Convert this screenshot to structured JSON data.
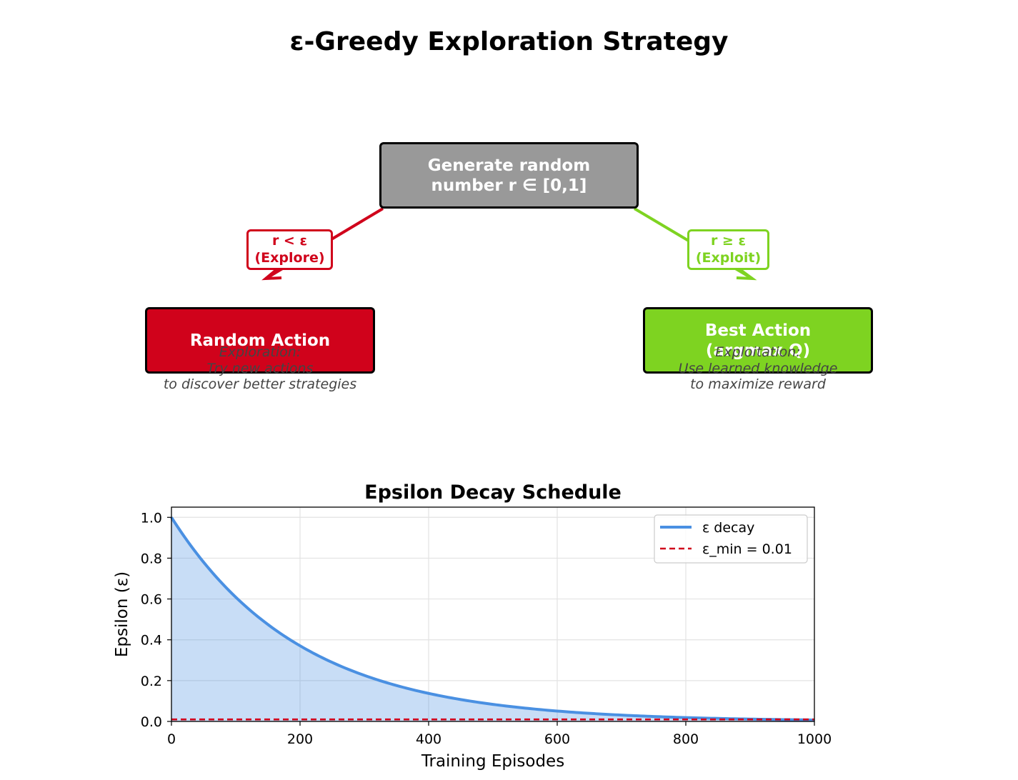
{
  "title": "ε-Greedy Exploration Strategy",
  "diagram": {
    "start_box": {
      "line1": "Generate random",
      "line2": "number r ∈ [0,1]",
      "color": "#999999"
    },
    "explore_condition": {
      "line1": "r < ε",
      "line2": "(Explore)",
      "color": "#D0021B"
    },
    "exploit_condition": {
      "line1": "r ≥ ε",
      "line2": "(Exploit)",
      "color": "#7ED321"
    },
    "random_action": {
      "label": "Random Action",
      "color": "#D0021B"
    },
    "best_action": {
      "line1": "Best Action",
      "line2": "(argmax Q)",
      "color": "#7ED321"
    },
    "explore_note": {
      "line1": "Exploration:",
      "line2": "Try new actions",
      "line3": "to discover better strategies"
    },
    "exploit_note": {
      "line1": "Exploitation:",
      "line2": "Use learned knowledge",
      "line3": "to maximize reward"
    }
  },
  "chart_data": {
    "type": "line",
    "title": "Epsilon Decay Schedule",
    "xlabel": "Training Episodes",
    "ylabel": "Epsilon (ε)",
    "xlim": [
      0,
      1000
    ],
    "ylim": [
      0,
      1.05
    ],
    "xticks": [
      "0",
      "200",
      "400",
      "600",
      "800",
      "1000"
    ],
    "yticks": [
      "0.0",
      "0.2",
      "0.4",
      "0.6",
      "0.8",
      "1.0"
    ],
    "grid": true,
    "legend_position": "top-right",
    "series": [
      {
        "name": "ε decay",
        "style": "solid",
        "color": "#4A90E2",
        "fill": true,
        "x": [
          0,
          50,
          100,
          150,
          200,
          250,
          300,
          350,
          400,
          450,
          500,
          550,
          600,
          650,
          700,
          750,
          800,
          850,
          900,
          950,
          1000
        ],
        "y": [
          1.0,
          0.78,
          0.607,
          0.473,
          0.368,
          0.287,
          0.223,
          0.174,
          0.135,
          0.105,
          0.082,
          0.064,
          0.05,
          0.039,
          0.03,
          0.024,
          0.018,
          0.014,
          0.011,
          0.009,
          0.007
        ]
      },
      {
        "name": "ε_min = 0.01",
        "style": "dashed",
        "color": "#D0021B",
        "x": [
          0,
          1000
        ],
        "y": [
          0.01,
          0.01
        ]
      }
    ]
  }
}
